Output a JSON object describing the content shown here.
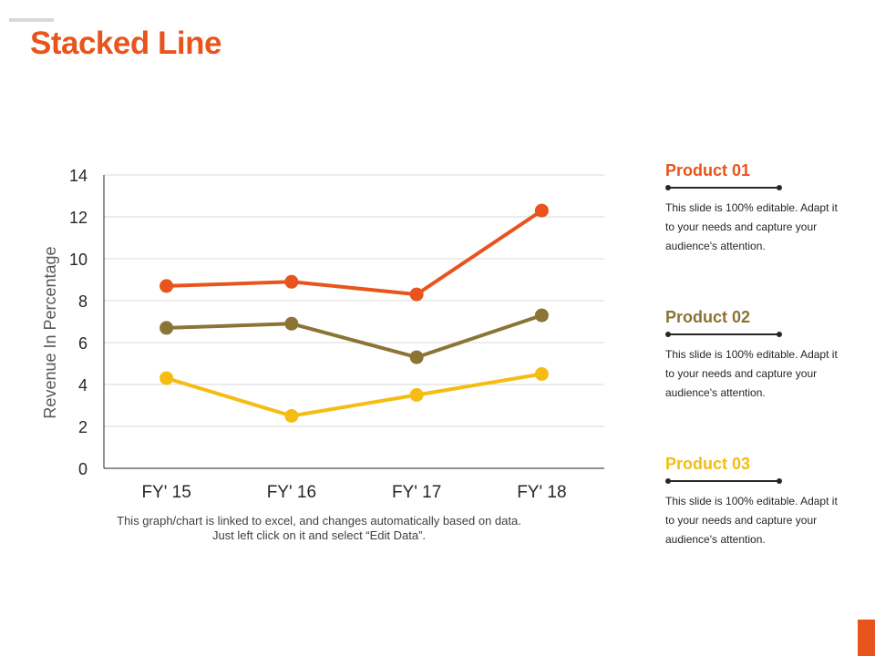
{
  "page": {
    "title": "Stacked Line"
  },
  "chart_data": {
    "type": "line",
    "categories": [
      "FY' 15",
      "FY' 16",
      "FY' 17",
      "FY' 18"
    ],
    "series": [
      {
        "name": "Product 01",
        "color": "#e8541c",
        "values": [
          8.7,
          8.9,
          8.3,
          12.3
        ]
      },
      {
        "name": "Product 02",
        "color": "#8c7336",
        "values": [
          6.7,
          6.9,
          5.3,
          7.3
        ]
      },
      {
        "name": "Product 03",
        "color": "#f5bc14",
        "values": [
          4.3,
          2.5,
          3.5,
          4.5
        ]
      }
    ],
    "ylabel": "Revenue In Percentage",
    "xlabel": "",
    "ylim": [
      0,
      14
    ],
    "yticks": [
      0,
      2,
      4,
      6,
      8,
      10,
      12,
      14
    ],
    "grid": true
  },
  "caption": "This graph/chart is linked to excel, and changes automatically based on data. Just left click on it and select “Edit Data”.",
  "legend": [
    {
      "title": "Product 01",
      "color": "#e8541c",
      "text": "This slide is 100% editable. Adapt it to your needs and capture your audience's attention."
    },
    {
      "title": "Product 02",
      "color": "#8c7336",
      "text": "This slide is 100% editable. Adapt it to your needs and capture your audience's attention."
    },
    {
      "title": "Product 03",
      "color": "#f5bc14",
      "text": "This slide is 100% editable. Adapt it to your needs and capture your audience's attention."
    }
  ]
}
